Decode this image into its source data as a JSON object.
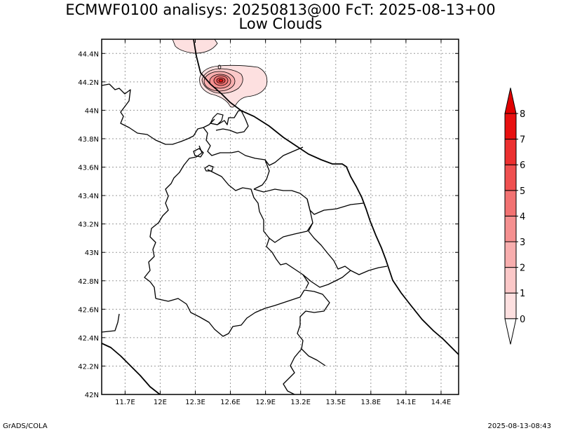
{
  "title": {
    "line1": "ECMWF0100 analisys: 20250813@00 FcT: 2025-08-13+00",
    "line2": "Low Clouds"
  },
  "footer": {
    "left": "GrADS/COLA",
    "right": "2025-08-13-08:43"
  },
  "map": {
    "lon_range": [
      11.5,
      14.55
    ],
    "lat_range": [
      42.0,
      44.5
    ],
    "lon_ticks": [
      {
        "value": 11.7,
        "label": "11.7E"
      },
      {
        "value": 12.0,
        "label": "12E"
      },
      {
        "value": 12.3,
        "label": "12.3E"
      },
      {
        "value": 12.6,
        "label": "12.6E"
      },
      {
        "value": 12.9,
        "label": "12.9E"
      },
      {
        "value": 13.2,
        "label": "13.2E"
      },
      {
        "value": 13.5,
        "label": "13.5E"
      },
      {
        "value": 13.8,
        "label": "13.8E"
      },
      {
        "value": 14.1,
        "label": "14.1E"
      },
      {
        "value": 14.4,
        "label": "14.4E"
      }
    ],
    "lat_ticks": [
      {
        "value": 42.0,
        "label": "42N"
      },
      {
        "value": 42.2,
        "label": "42.2N"
      },
      {
        "value": 42.4,
        "label": "42.4N"
      },
      {
        "value": 42.6,
        "label": "42.6N"
      },
      {
        "value": 42.8,
        "label": "42.8N"
      },
      {
        "value": 43.0,
        "label": "43N"
      },
      {
        "value": 43.2,
        "label": "43.2N"
      },
      {
        "value": 43.4,
        "label": "43.4N"
      },
      {
        "value": 43.6,
        "label": "43.6N"
      },
      {
        "value": 43.8,
        "label": "43.8N"
      },
      {
        "value": 44.0,
        "label": "44N"
      },
      {
        "value": 44.2,
        "label": "44.2N"
      },
      {
        "value": 44.4,
        "label": "44.4N"
      }
    ],
    "grid": true,
    "contour_label": "0",
    "cloud_peak": {
      "lon": 12.5,
      "lat": 44.2
    }
  },
  "colorbar": {
    "levels": [
      "0",
      "1",
      "2",
      "3",
      "4",
      "5",
      "6",
      "7",
      "8"
    ],
    "colors": [
      "#ffffff",
      "#fde0e0",
      "#fbc8c8",
      "#f8aeae",
      "#f59090",
      "#f27272",
      "#ef5050",
      "#ec3030",
      "#e81010",
      "#e00000"
    ]
  }
}
